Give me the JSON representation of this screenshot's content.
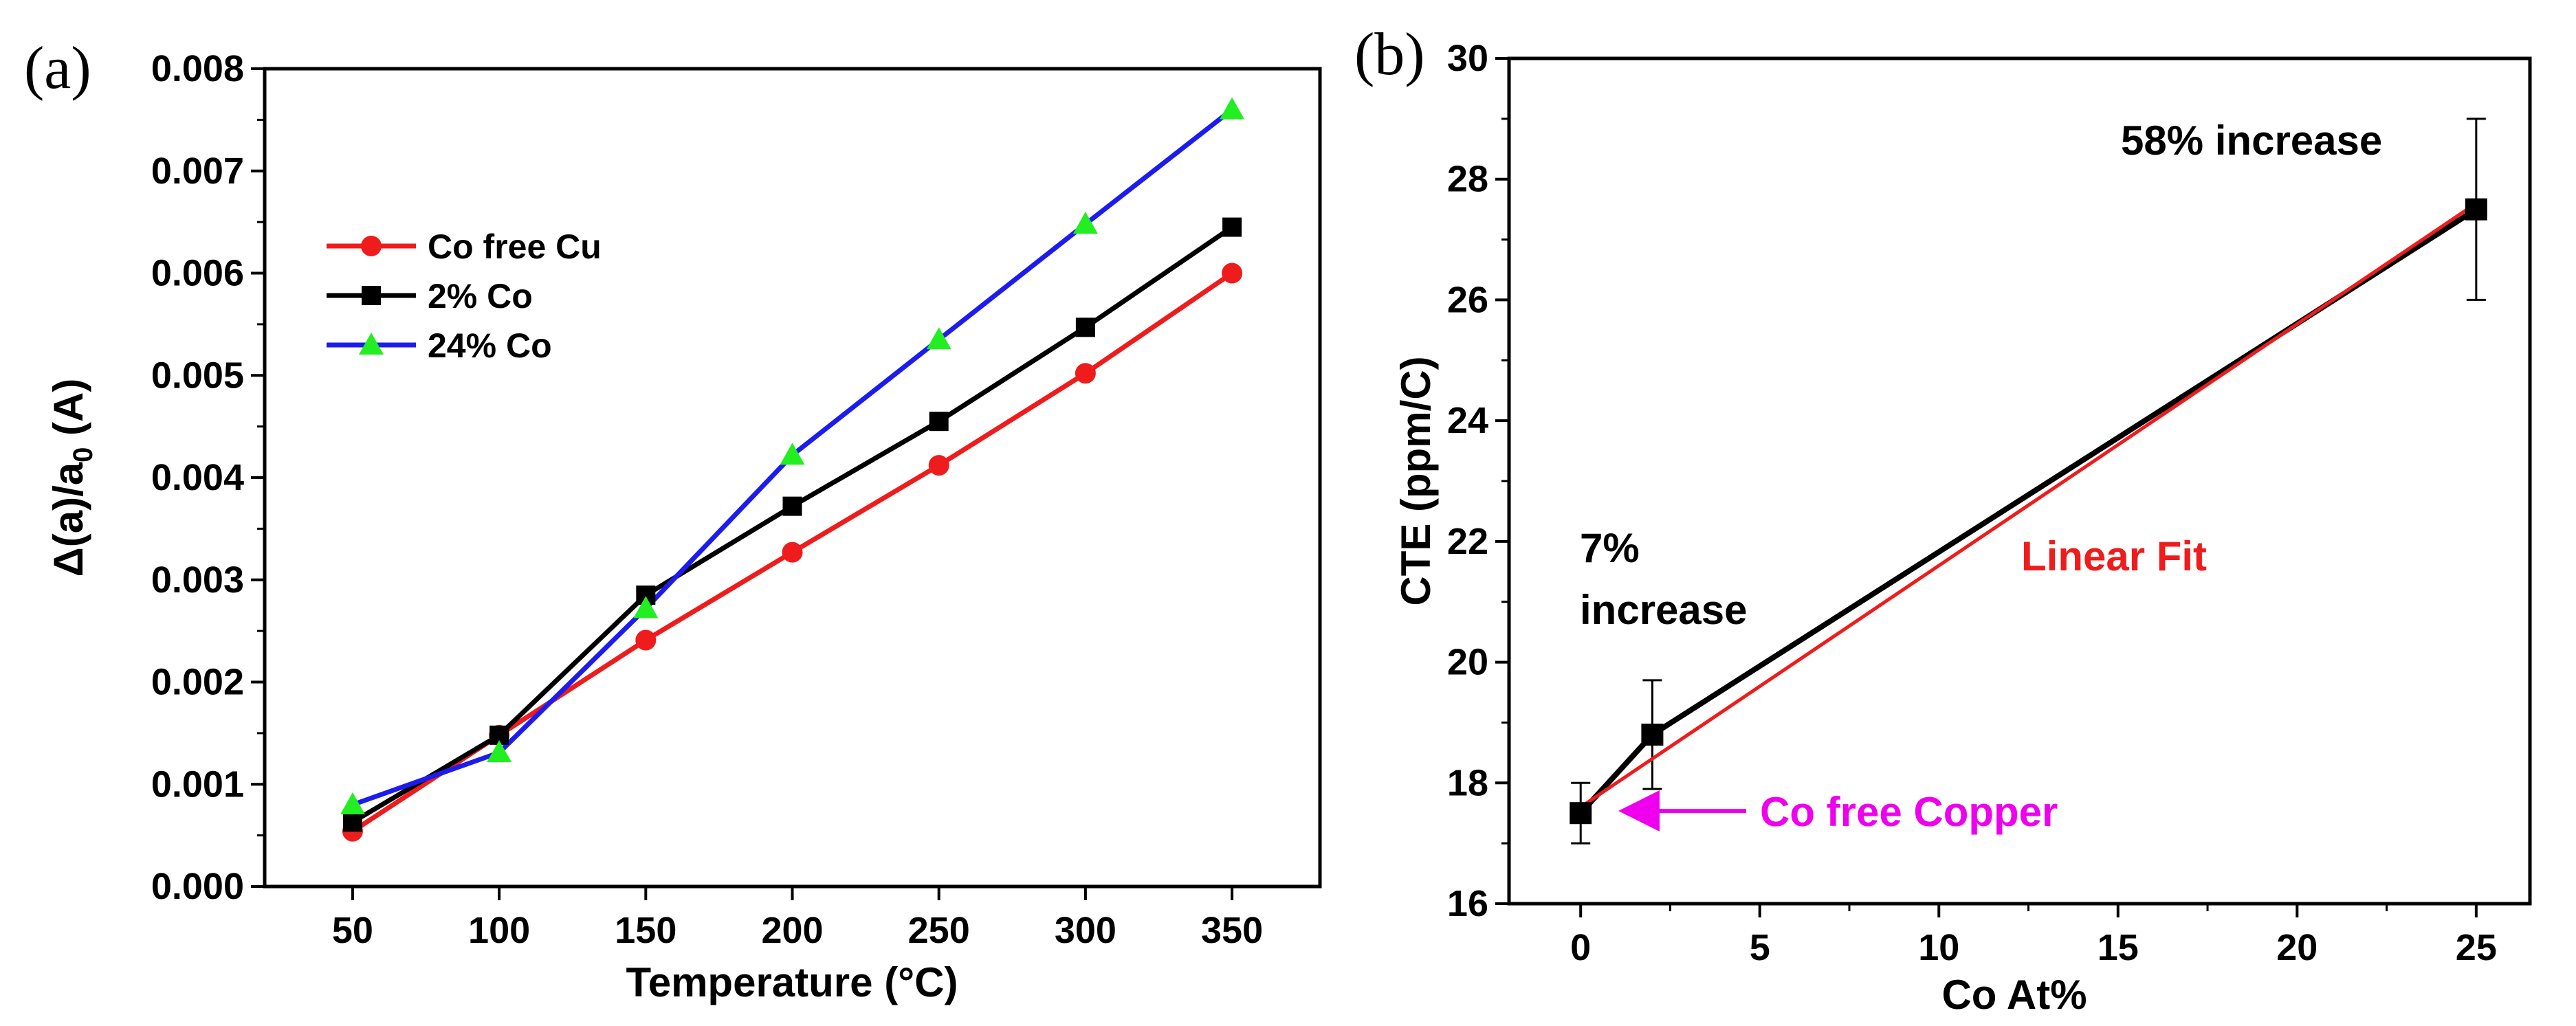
{
  "panels": [
    "(a)",
    "(b)"
  ],
  "chart_data": [
    {
      "type": "line",
      "panel": "(a)",
      "title": "",
      "xlabel": "Temperature (°C)",
      "ylabel_main": "Δ(a)/a",
      "ylabel_sub": "0",
      "ylabel_suffix": " (A)",
      "xlim": [
        20,
        380
      ],
      "ylim": [
        0,
        0.008
      ],
      "xticks": [
        "50",
        "100",
        "150",
        "200",
        "250",
        "300",
        "350"
      ],
      "xtick_values": [
        50,
        100,
        150,
        200,
        250,
        300,
        350
      ],
      "yticks": [
        "0.000",
        "0.001",
        "0.002",
        "0.003",
        "0.004",
        "0.005",
        "0.006",
        "0.007",
        "0.008"
      ],
      "ytick_values": [
        0,
        0.001,
        0.002,
        0.003,
        0.004,
        0.005,
        0.006,
        0.007,
        0.008
      ],
      "grid": false,
      "legend_position": "upper-left",
      "x": [
        50,
        100,
        150,
        200,
        250,
        300,
        350
      ],
      "series": [
        {
          "name": "Co free Cu",
          "values": [
            0.00054,
            0.00148,
            0.00241,
            0.00327,
            0.00412,
            0.00502,
            0.006
          ],
          "line_color": "#ee1c1c",
          "marker": "circle",
          "marker_color": "#ee1c1c"
        },
        {
          "name": "2% Co",
          "values": [
            0.00063,
            0.00148,
            0.00285,
            0.00372,
            0.00455,
            0.00547,
            0.00645
          ],
          "line_color": "#000000",
          "marker": "square",
          "marker_color": "#000000"
        },
        {
          "name": "24% Co",
          "values": [
            0.0008,
            0.00131,
            0.00272,
            0.00422,
            0.00535,
            0.00648,
            0.0076
          ],
          "line_color": "#1c1cee",
          "marker": "triangle",
          "marker_color": "#22ee22"
        }
      ]
    },
    {
      "type": "scatter",
      "panel": "(b)",
      "title": "",
      "xlabel": "Co At%",
      "ylabel": "CTE (ppm/C)",
      "xlim": [
        -2,
        26.5
      ],
      "ylim": [
        16,
        30
      ],
      "xticks": [
        "0",
        "5",
        "10",
        "15",
        "20",
        "25"
      ],
      "xtick_values": [
        0,
        5,
        10,
        15,
        20,
        25
      ],
      "yticks": [
        "16",
        "18",
        "20",
        "22",
        "24",
        "26",
        "28",
        "30"
      ],
      "ytick_values": [
        16,
        18,
        20,
        22,
        24,
        26,
        28,
        30
      ],
      "grid": false,
      "points": {
        "x": [
          0,
          2,
          25
        ],
        "y": [
          17.5,
          18.8,
          27.5
        ],
        "error": [
          0.5,
          0.9,
          1.5
        ],
        "line_color": "#000000",
        "marker": "square"
      },
      "fit": {
        "name": "Linear Fit",
        "x": [
          0,
          25
        ],
        "y": [
          17.6,
          27.6
        ],
        "color": "#ee1c1c"
      },
      "annotations": {
        "increase_58": "58% increase",
        "increase_7_line1": "7%",
        "increase_7_line2": "increase",
        "linear_fit": "Linear Fit",
        "co_free": "Co free Copper"
      },
      "annotation_colors": {
        "default": "#000000",
        "fit": "#ee1c1c",
        "co_free": "#ee00ee"
      }
    }
  ]
}
